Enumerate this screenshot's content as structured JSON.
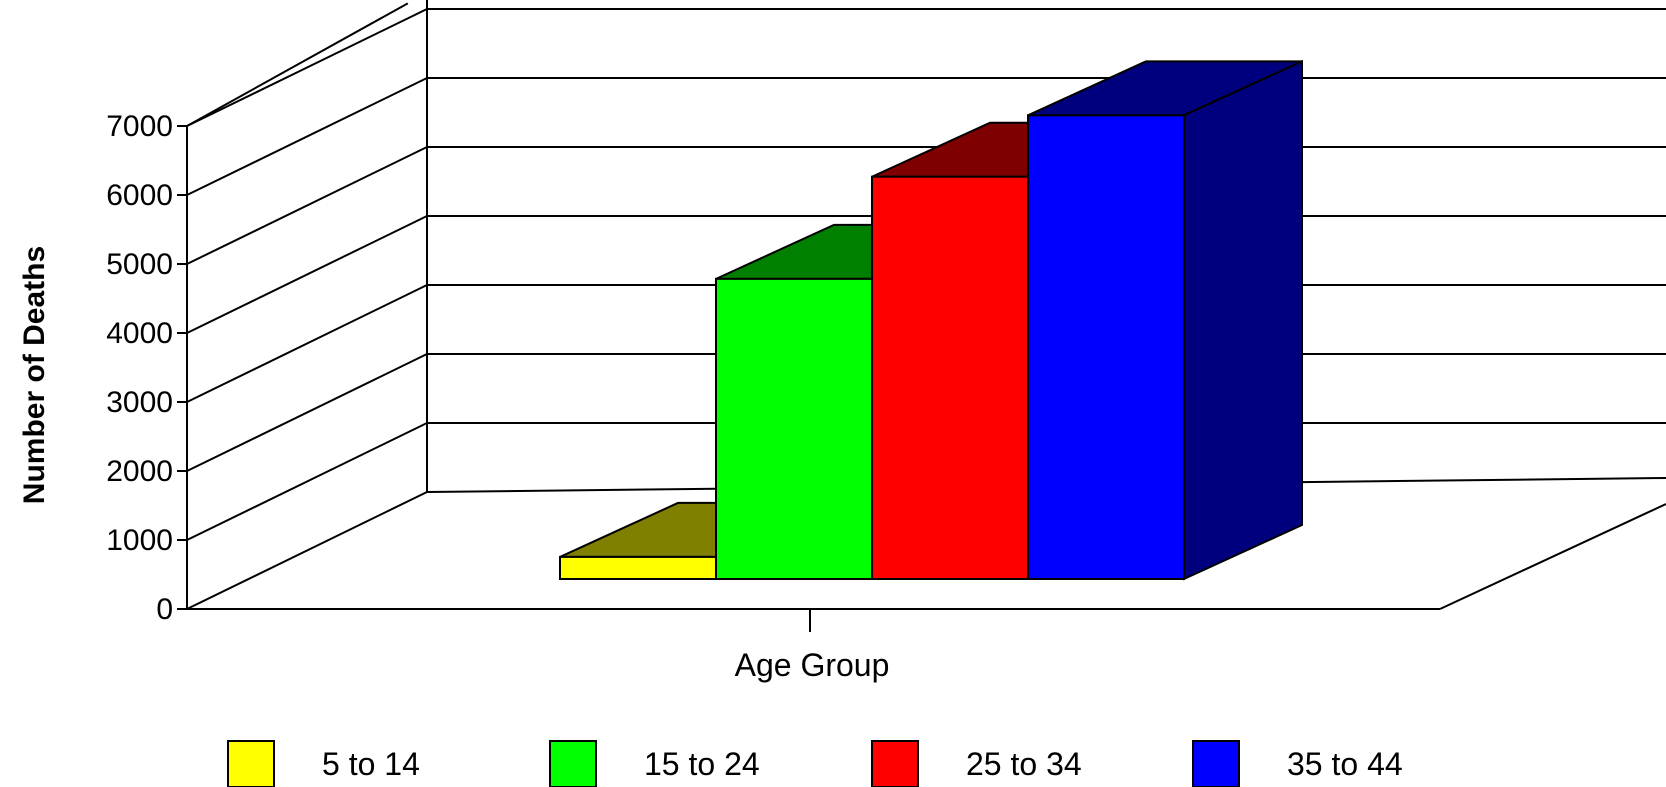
{
  "chart_data": {
    "type": "bar",
    "style": "3d",
    "title": "",
    "xlabel": "Age Group",
    "ylabel": "Number of Deaths",
    "ylim": [
      0,
      7000
    ],
    "yticks": [
      0,
      1000,
      2000,
      3000,
      4000,
      5000,
      6000,
      7000
    ],
    "grid": true,
    "legend": "bottom",
    "categories": [
      "Age Group"
    ],
    "series": [
      {
        "name": "5 to 14",
        "values": [
          320
        ],
        "color": "#ffff00",
        "top_color": "#7f7f00",
        "side_color": "#7f7f00"
      },
      {
        "name": "15 to 24",
        "values": [
          4350
        ],
        "color": "#00ff00",
        "top_color": "#007f00",
        "side_color": "#007f00"
      },
      {
        "name": "25 to 34",
        "values": [
          5830
        ],
        "color": "#ff0000",
        "top_color": "#7f0000",
        "side_color": "#7f0000"
      },
      {
        "name": "35 to 44",
        "values": [
          6720
        ],
        "color": "#0000ff",
        "top_color": "#00007f",
        "side_color": "#00007f"
      }
    ]
  }
}
